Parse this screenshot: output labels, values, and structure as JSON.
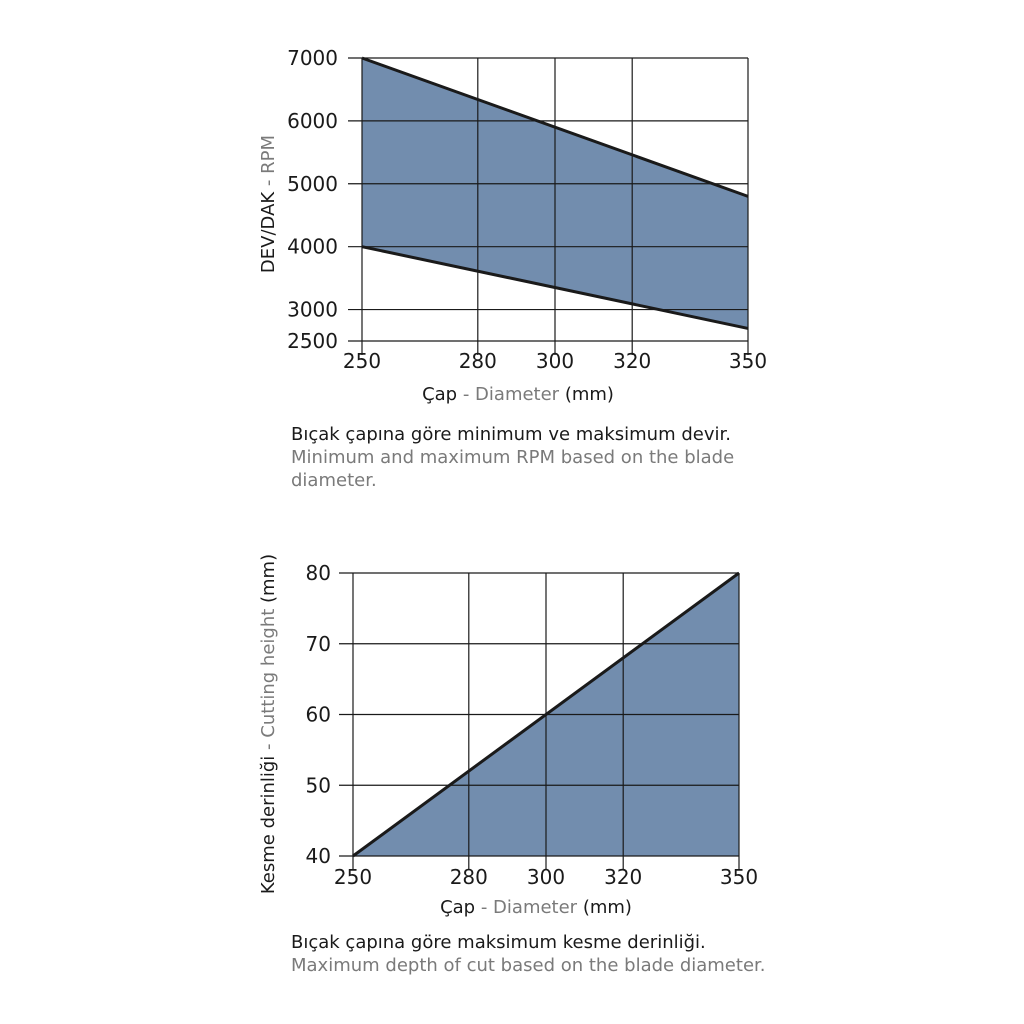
{
  "chart_data": [
    {
      "type": "area",
      "x": [
        250,
        350
      ],
      "series": [
        {
          "name": "",
          "values": [
            7000,
            4800
          ]
        },
        {
          "name": "",
          "values": [
            4000,
            2700
          ]
        }
      ],
      "fill": "band-between-series",
      "xticks": [
        "250",
        "280",
        "300",
        "320",
        "350"
      ],
      "yticks": [
        "2500",
        "3000",
        "4000",
        "5000",
        "6000",
        "7000"
      ],
      "xlim": [
        250,
        350
      ],
      "ylim": [
        2500,
        7000
      ],
      "xlabel": {
        "tr": "Çap",
        "sep": " - ",
        "en": "Diameter",
        "unit": " (mm)"
      },
      "ylabel": {
        "tr": "DEV/DAK",
        "sep": " - ",
        "en": "RPM"
      },
      "caption_tr": "Bıçak çapına göre minimum ve maksimum devir.",
      "caption_en_line1": "Minimum and maximum RPM based on the blade",
      "caption_en_line2": "diameter.",
      "grid": true,
      "fill_color": "#728dae",
      "line_color": "#1a1a1a"
    },
    {
      "type": "area",
      "x": [
        250,
        350
      ],
      "series": [
        {
          "name": "",
          "values": [
            40,
            80
          ]
        }
      ],
      "fill": "below-line",
      "xticks": [
        "250",
        "280",
        "300",
        "320",
        "350"
      ],
      "yticks": [
        "40",
        "50",
        "60",
        "70",
        "80"
      ],
      "xlim": [
        250,
        350
      ],
      "ylim": [
        40,
        80
      ],
      "xlabel": {
        "tr": "Çap",
        "sep": " - ",
        "en": "Diameter",
        "unit": " (mm)"
      },
      "ylabel": {
        "tr": "Kesme derinliği",
        "sep": " - ",
        "en": "Cutting height",
        "unit": " (mm)"
      },
      "caption_tr": "Bıçak çapına göre maksimum kesme derinliği.",
      "caption_en_line1": "Maximum depth of cut based on the blade diameter.",
      "grid": true,
      "fill_color": "#728dae",
      "line_color": "#1a1a1a"
    }
  ]
}
